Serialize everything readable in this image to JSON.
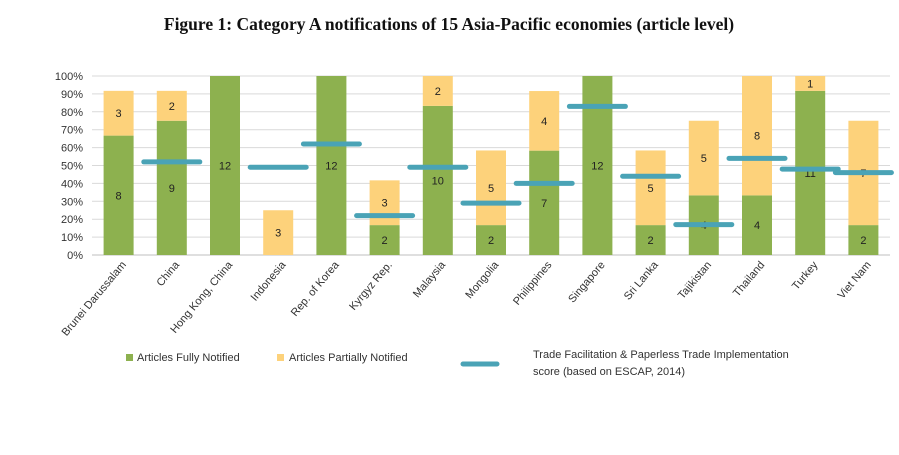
{
  "chart_data": {
    "type": "bar",
    "title": "Figure 1: Category A notifications of 15 Asia-Pacific economies (article level)",
    "xlabel": "",
    "ylabel": "",
    "ylim": [
      0,
      100
    ],
    "yticks": [
      "0%",
      "10%",
      "20%",
      "30%",
      "40%",
      "50%",
      "60%",
      "70%",
      "80%",
      "90%",
      "100%"
    ],
    "stacked": true,
    "grid": true,
    "legend_position": "bottom",
    "categories": [
      "Brunei Darussalam",
      "China",
      "Hong Kong, China",
      "Indonesia",
      "Rep. of Korea",
      "Kyrgyz Rep.",
      "Malaysia",
      "Mongolia",
      "Philippines",
      "Singapore",
      "Sri Lanka",
      "Tajikistan",
      "Thailand",
      "Turkey",
      "Viet Nam"
    ],
    "series": [
      {
        "name": "Articles Fully Notified",
        "color": "#8db14f",
        "values": [
          66.7,
          75,
          100,
          0,
          100,
          16.7,
          83.3,
          16.7,
          58.3,
          100,
          16.7,
          33.3,
          33.3,
          91.7,
          16.7
        ],
        "labels": [
          "8",
          "9",
          "12",
          "",
          "12",
          "2",
          "10",
          "2",
          "7",
          "12",
          "2",
          "4",
          "4",
          "11",
          "2"
        ]
      },
      {
        "name": "Articles Partially Notified",
        "color": "#fdd27b",
        "values": [
          25,
          16.7,
          0,
          25,
          0,
          25,
          16.7,
          41.7,
          33.3,
          0,
          41.7,
          41.7,
          66.7,
          8.3,
          58.3
        ],
        "labels": [
          "3",
          "2",
          "",
          "3",
          "",
          "3",
          "2",
          "5",
          "4",
          "",
          "5",
          "5",
          "8",
          "1",
          "7"
        ]
      },
      {
        "name": "Trade Facilitation & Paperless Trade Implementation score (based on ESCAP, 2014)",
        "type": "marker",
        "color": "#4aa3b6",
        "values": [
          null,
          52,
          null,
          49,
          62,
          22,
          49,
          29,
          40,
          83,
          44,
          17,
          54,
          48,
          46
        ]
      }
    ],
    "legend": [
      {
        "label": "Articles Fully Notified",
        "color": "#8db14f"
      },
      {
        "label": "Articles Partially Notified",
        "color": "#fdd27b"
      },
      {
        "label_line1": "Trade Facilitation & Paperless Trade Implementation",
        "label_line2": "score (based on ESCAP, 2014)",
        "color": "#4aa3b6"
      }
    ]
  }
}
